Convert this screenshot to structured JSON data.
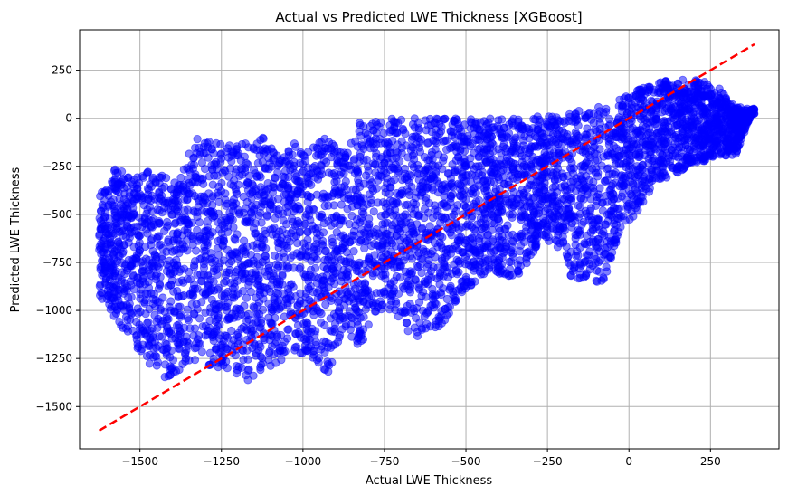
{
  "chart_data": {
    "type": "scatter",
    "title": "Actual vs Predicted LWE Thickness [XGBoost]",
    "xlabel": "Actual LWE Thickness",
    "ylabel": "Predicted LWE Thickness",
    "xlim": [
      -1685,
      460
    ],
    "ylim": [
      -1720,
      460
    ],
    "xticks": [
      -1500,
      -1250,
      -1000,
      -750,
      -500,
      -250,
      0,
      250
    ],
    "xtick_labels": [
      "−1500",
      "−1250",
      "−1000",
      "−750",
      "−500",
      "−250",
      "0",
      "250"
    ],
    "yticks": [
      250,
      0,
      -250,
      -500,
      -750,
      -1000,
      -1250,
      -1500
    ],
    "ytick_labels": [
      "250",
      "0",
      "−250",
      "−500",
      "−750",
      "−1000",
      "−1250",
      "−1500"
    ],
    "grid": true,
    "colors": {
      "points": "#0000ff",
      "reference_line": "#ff0000",
      "grid": "#b0b0b0"
    },
    "point_cloud": {
      "x_range": [
        -1625,
        385
      ],
      "y_range": [
        -1370,
        200
      ],
      "columns": [
        {
          "x": -1625,
          "lo": -930,
          "hi": -400
        },
        {
          "x": -1575,
          "lo": -1040,
          "hi": -250
        },
        {
          "x": -1525,
          "lo": -1160,
          "hi": -320
        },
        {
          "x": -1475,
          "lo": -1270,
          "hi": -250
        },
        {
          "x": -1425,
          "lo": -1350,
          "hi": -290
        },
        {
          "x": -1375,
          "lo": -1320,
          "hi": -290
        },
        {
          "x": -1325,
          "lo": -1270,
          "hi": -80
        },
        {
          "x": -1275,
          "lo": -1300,
          "hi": -130
        },
        {
          "x": -1225,
          "lo": -1320,
          "hi": -130
        },
        {
          "x": -1175,
          "lo": -1370,
          "hi": -120
        },
        {
          "x": -1125,
          "lo": -1320,
          "hi": -90
        },
        {
          "x": -1075,
          "lo": -1270,
          "hi": -200
        },
        {
          "x": -1025,
          "lo": -1220,
          "hi": -130
        },
        {
          "x": -975,
          "lo": -1240,
          "hi": -130
        },
        {
          "x": -925,
          "lo": -1330,
          "hi": -100
        },
        {
          "x": -875,
          "lo": -1120,
          "hi": -150
        },
        {
          "x": -825,
          "lo": -1190,
          "hi": -20
        },
        {
          "x": -775,
          "lo": -1010,
          "hi": 0
        },
        {
          "x": -725,
          "lo": -1030,
          "hi": 0
        },
        {
          "x": -675,
          "lo": -1130,
          "hi": 0
        },
        {
          "x": -625,
          "lo": -1140,
          "hi": 0
        },
        {
          "x": -575,
          "lo": -1080,
          "hi": 0
        },
        {
          "x": -525,
          "lo": -950,
          "hi": 0
        },
        {
          "x": -475,
          "lo": -860,
          "hi": 0
        },
        {
          "x": -425,
          "lo": -780,
          "hi": 0
        },
        {
          "x": -375,
          "lo": -830,
          "hi": 0
        },
        {
          "x": -325,
          "lo": -800,
          "hi": 0
        },
        {
          "x": -275,
          "lo": -640,
          "hi": 10
        },
        {
          "x": -225,
          "lo": -660,
          "hi": 20
        },
        {
          "x": -175,
          "lo": -830,
          "hi": 30
        },
        {
          "x": -125,
          "lo": -840,
          "hi": 50
        },
        {
          "x": -75,
          "lo": -860,
          "hi": 70
        },
        {
          "x": -25,
          "lo": -580,
          "hi": 100
        },
        {
          "x": 25,
          "lo": -500,
          "hi": 150
        },
        {
          "x": 75,
          "lo": -340,
          "hi": 180
        },
        {
          "x": 125,
          "lo": -310,
          "hi": 200
        },
        {
          "x": 175,
          "lo": -260,
          "hi": 200
        },
        {
          "x": 225,
          "lo": -230,
          "hi": 200
        },
        {
          "x": 275,
          "lo": -190,
          "hi": 160
        },
        {
          "x": 325,
          "lo": -200,
          "hi": 60
        },
        {
          "x": 375,
          "lo": 20,
          "hi": 50
        }
      ]
    },
    "reference_line": {
      "label": "",
      "style": "dashed",
      "x": [
        -1625,
        385
      ],
      "y": [
        -1625,
        385
      ]
    }
  }
}
